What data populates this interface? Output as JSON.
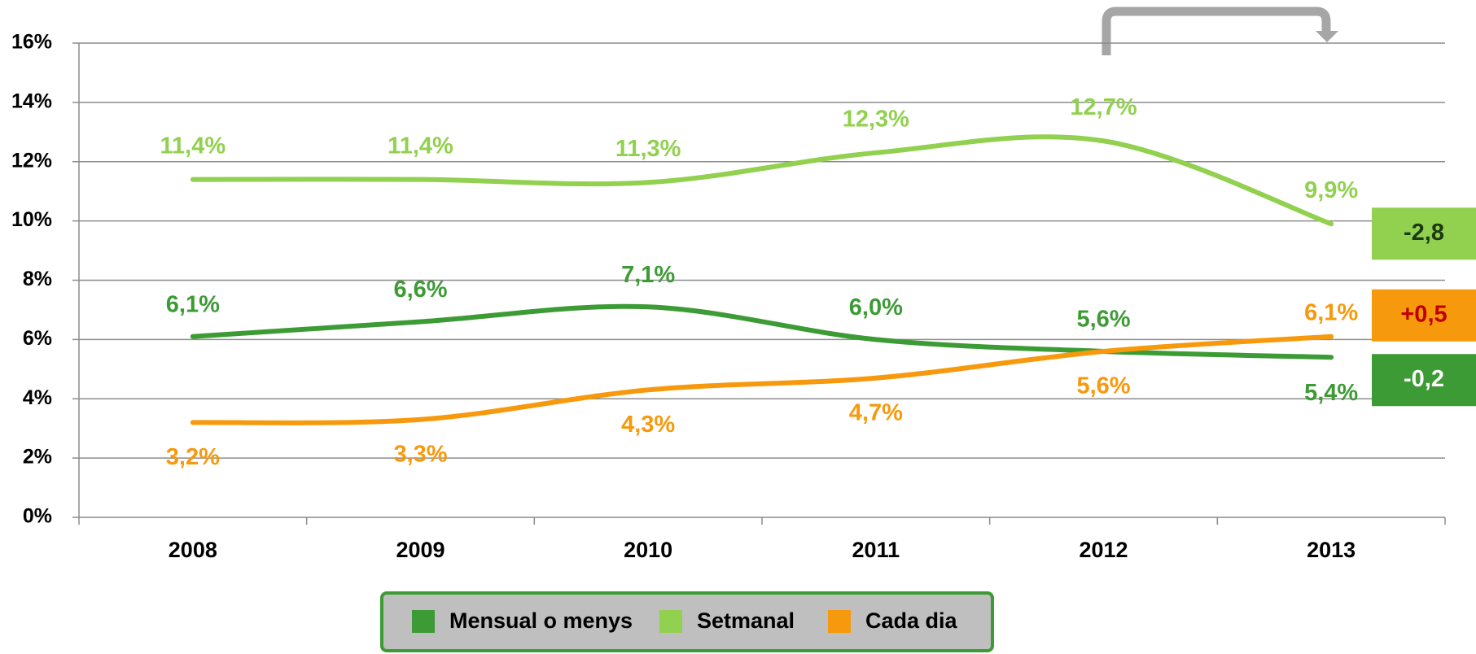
{
  "chart_data": {
    "type": "line",
    "categories": [
      "2008",
      "2009",
      "2010",
      "2011",
      "2012",
      "2013"
    ],
    "series": [
      {
        "name": "Mensual o menys",
        "color": "#3d9b35",
        "values": [
          6.1,
          6.6,
          7.1,
          6.0,
          5.6,
          5.4
        ],
        "value_labels": [
          "6,1%",
          "6,6%",
          "7,1%",
          "6,0%",
          "5,6%",
          "5,4%"
        ]
      },
      {
        "name": "Setmanal",
        "color": "#92d050",
        "values": [
          11.4,
          11.4,
          11.3,
          12.3,
          12.7,
          9.9
        ],
        "value_labels": [
          "11,4%",
          "11,4%",
          "11,3%",
          "12,3%",
          "12,7%",
          "9,9%"
        ]
      },
      {
        "name": "Cada dia",
        "color": "#f7990c",
        "values": [
          3.2,
          3.3,
          4.3,
          4.7,
          5.6,
          6.1
        ],
        "value_labels": [
          "3,2%",
          "3,3%",
          "4,3%",
          "4,7%",
          "5,6%",
          "6,1%"
        ]
      }
    ],
    "ylim": [
      0,
      16
    ],
    "yticks": [
      {
        "value": 0,
        "label": "0%"
      },
      {
        "value": 2,
        "label": "2%"
      },
      {
        "value": 4,
        "label": "4%"
      },
      {
        "value": 6,
        "label": "6%"
      },
      {
        "value": 8,
        "label": "8%"
      },
      {
        "value": 10,
        "label": "10%"
      },
      {
        "value": 12,
        "label": "12%"
      },
      {
        "value": 14,
        "label": "14%"
      },
      {
        "value": 16,
        "label": "16%"
      }
    ],
    "grid": true,
    "legend": "bottom",
    "annotations": [
      {
        "text": "-2,8",
        "background": "#92d050",
        "color": "#1b3a12",
        "series": 1
      },
      {
        "text": "+0,5",
        "background": "#f7990c",
        "color": "#c00000",
        "series": 2
      },
      {
        "text": "-0,2",
        "background": "#3d9b35",
        "color": "#ffffff",
        "series": 0
      }
    ]
  }
}
